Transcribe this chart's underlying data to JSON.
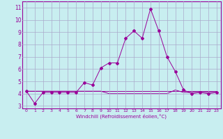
{
  "xlabel": "Windchill (Refroidissement éolien,°C)",
  "x": [
    0,
    1,
    2,
    3,
    4,
    5,
    6,
    7,
    8,
    9,
    10,
    11,
    12,
    13,
    14,
    15,
    16,
    17,
    18,
    19,
    20,
    21,
    22,
    23
  ],
  "line1": [
    4.2,
    3.2,
    4.1,
    4.1,
    4.1,
    4.1,
    4.1,
    4.9,
    4.7,
    6.1,
    6.5,
    6.5,
    8.5,
    9.1,
    8.5,
    10.9,
    9.1,
    7.0,
    5.8,
    4.3,
    4.0,
    4.1,
    4.0,
    4.1
  ],
  "line2": [
    4.2,
    4.2,
    4.2,
    4.2,
    4.2,
    4.2,
    4.2,
    4.2,
    4.2,
    4.2,
    4.2,
    4.2,
    4.2,
    4.2,
    4.2,
    4.2,
    4.2,
    4.2,
    4.2,
    4.2,
    4.2,
    4.2,
    4.2,
    4.2
  ],
  "line3": [
    4.2,
    4.2,
    4.2,
    4.2,
    4.2,
    4.2,
    4.2,
    4.2,
    4.2,
    4.2,
    4.0,
    4.0,
    4.0,
    4.0,
    4.0,
    4.0,
    4.0,
    4.0,
    4.3,
    4.1,
    4.1,
    4.1,
    4.1,
    4.1
  ],
  "line_color": "#990099",
  "bg_color": "#c8eef0",
  "grid_color": "#aaaacc",
  "ylim": [
    2.8,
    11.5
  ],
  "yticks": [
    3,
    4,
    5,
    6,
    7,
    8,
    9,
    10,
    11
  ],
  "xlim": [
    -0.5,
    23.5
  ],
  "xticks": [
    0,
    1,
    2,
    3,
    4,
    5,
    6,
    7,
    8,
    9,
    10,
    11,
    12,
    13,
    14,
    15,
    16,
    17,
    18,
    19,
    20,
    21,
    22,
    23
  ]
}
